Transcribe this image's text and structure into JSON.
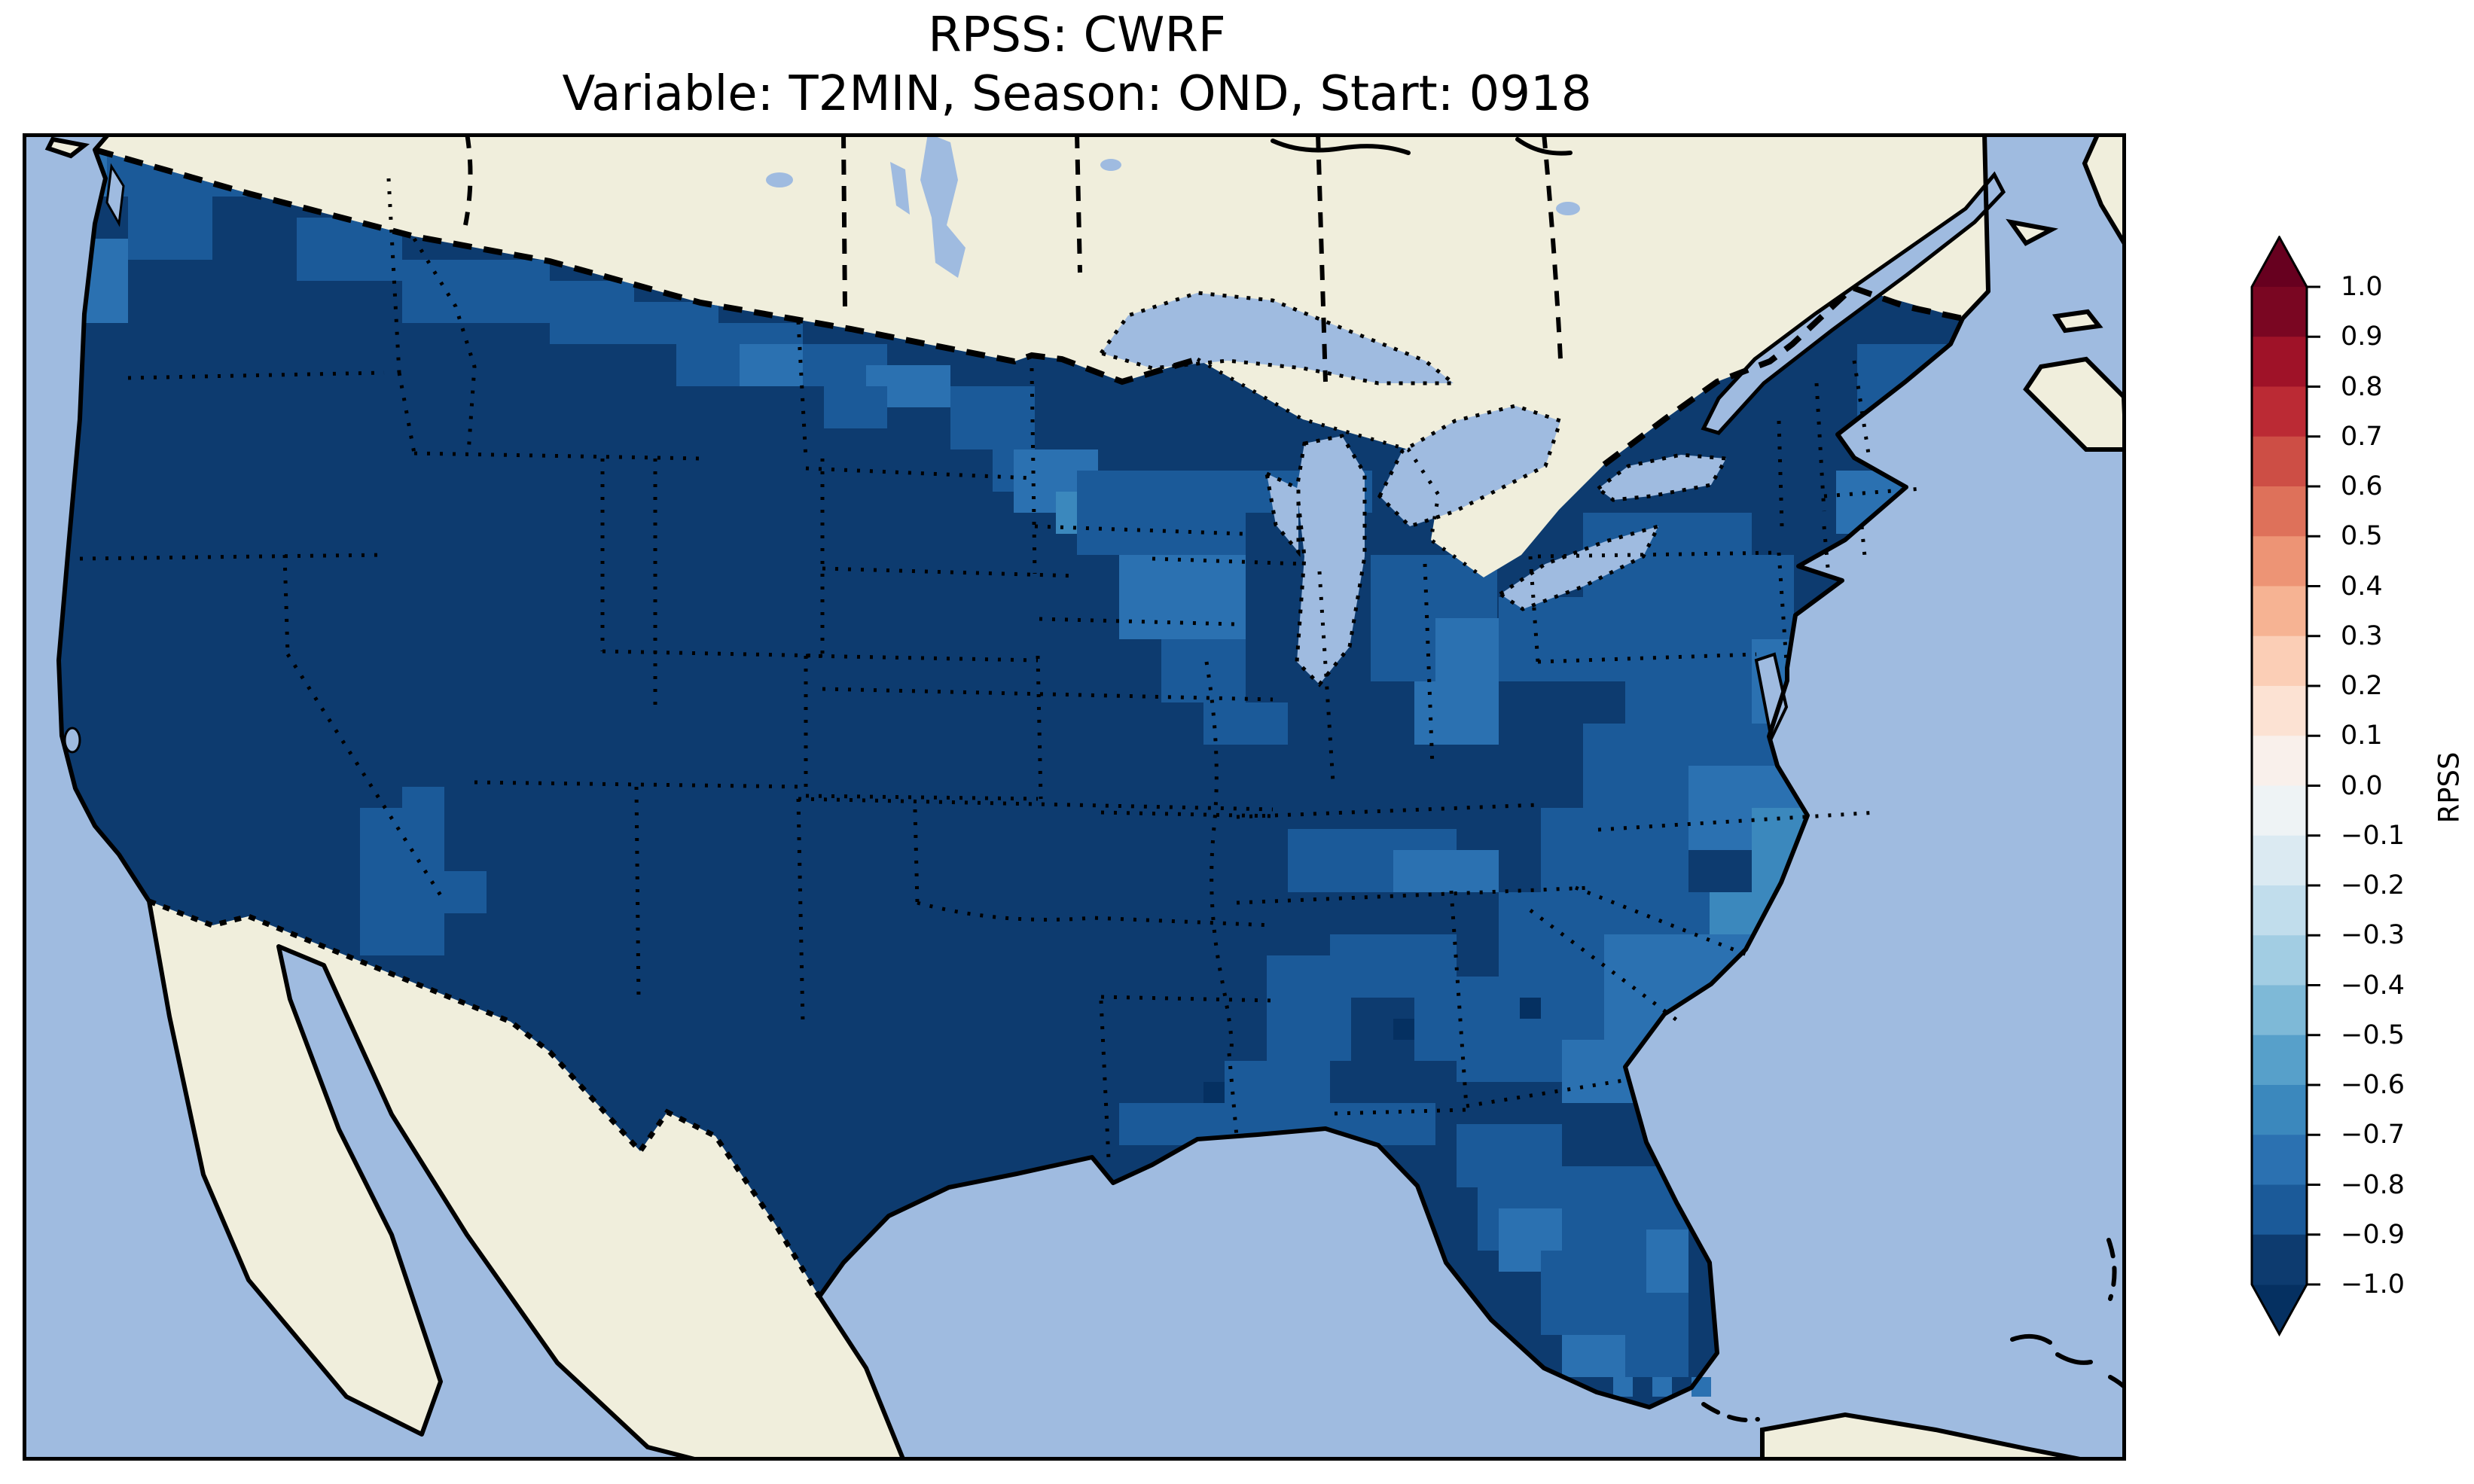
{
  "title": {
    "line1": "RPSS: CWRF",
    "line2": "Variable: T2MIN, Season: OND, Start: 0918"
  },
  "colorbar": {
    "label": "RPSS",
    "extend": "both",
    "ticks": [
      "1.0",
      "0.9",
      "0.8",
      "0.7",
      "0.6",
      "0.5",
      "0.4",
      "0.3",
      "0.2",
      "0.1",
      "0.0",
      "−0.1",
      "−0.2",
      "−0.3",
      "−0.4",
      "−0.5",
      "−0.6",
      "−0.7",
      "−0.8",
      "−0.9",
      "−1.0"
    ],
    "segment_colors": [
      "#7a0622",
      "#9f1228",
      "#bb2a34",
      "#cd4e45",
      "#de715a",
      "#ed9475",
      "#f6b393",
      "#fbceb6",
      "#fce2d3",
      "#f9f0eb",
      "#eef3f5",
      "#dbeaf2",
      "#c1ddec",
      "#a2cde3",
      "#7eb9d7",
      "#57a0ca",
      "#3b88bd",
      "#2b71b1",
      "#1b5a99",
      "#0d3b6f"
    ],
    "over_color": "#67001f",
    "under_color": "#053061"
  },
  "palette": {
    "ocean": "#9fbbe0",
    "land": "#f0eedc",
    "frame": "#000000",
    "b9": "#0d3b6f",
    "b8": "#1b5a99",
    "b7": "#2b71b1",
    "b6": "#3b88bd",
    "b5": "#57a0ca",
    "under": "#053061",
    "over": "#67001f"
  },
  "map_cells": [
    [
      84,
      28,
      56,
      56,
      "b7"
    ],
    [
      112,
      28,
      252,
      56,
      "b8"
    ],
    [
      140,
      84,
      112,
      84,
      "b8"
    ],
    [
      84,
      140,
      56,
      112,
      "b7"
    ],
    [
      364,
      112,
      140,
      84,
      "b8"
    ],
    [
      504,
      168,
      196,
      84,
      "b8"
    ],
    [
      700,
      196,
      112,
      84,
      "b8"
    ],
    [
      812,
      224,
      112,
      56,
      "b8"
    ],
    [
      868,
      252,
      168,
      84,
      "b8"
    ],
    [
      952,
      280,
      84,
      56,
      "b7"
    ],
    [
      1036,
      280,
      112,
      56,
      "b8"
    ],
    [
      1120,
      308,
      112,
      56,
      "b7"
    ],
    [
      1064,
      336,
      84,
      56,
      "b8"
    ],
    [
      1232,
      336,
      112,
      84,
      "b8"
    ],
    [
      1288,
      420,
      28,
      56,
      "b8"
    ],
    [
      1316,
      420,
      112,
      84,
      "b7"
    ],
    [
      1372,
      476,
      56,
      56,
      "b6"
    ],
    [
      1400,
      448,
      224,
      112,
      "b8"
    ],
    [
      1624,
      448,
      168,
      56,
      "b8"
    ],
    [
      1456,
      560,
      168,
      112,
      "b7"
    ],
    [
      1512,
      672,
      112,
      84,
      "b8"
    ],
    [
      1568,
      756,
      112,
      56,
      "b8"
    ],
    [
      1790,
      560,
      168,
      168,
      "b8"
    ],
    [
      1876,
      644,
      84,
      84,
      "b7"
    ],
    [
      1848,
      728,
      112,
      84,
      "b7"
    ],
    [
      2072,
      504,
      224,
      112,
      "b8"
    ],
    [
      1960,
      616,
      224,
      112,
      "b8"
    ],
    [
      2184,
      560,
      168,
      112,
      "b8"
    ],
    [
      2128,
      672,
      280,
      112,
      "b8"
    ],
    [
      2296,
      672,
      112,
      112,
      "b7"
    ],
    [
      2324,
      784,
      84,
      56,
      "b7"
    ],
    [
      2436,
      280,
      140,
      140,
      "b8"
    ],
    [
      2520,
      364,
      56,
      84,
      "b7"
    ],
    [
      2408,
      448,
      140,
      84,
      "b7"
    ],
    [
      2492,
      476,
      84,
      56,
      "b7"
    ],
    [
      2436,
      532,
      112,
      56,
      "b7"
    ],
    [
      2072,
      784,
      280,
      140,
      "b8"
    ],
    [
      2212,
      840,
      168,
      112,
      "b7"
    ],
    [
      2016,
      896,
      196,
      112,
      "b8"
    ],
    [
      2296,
      896,
      168,
      168,
      "b6"
    ],
    [
      2352,
      952,
      112,
      112,
      "b5"
    ],
    [
      2240,
      1008,
      112,
      84,
      "b6"
    ],
    [
      1680,
      924,
      224,
      84,
      "b8"
    ],
    [
      1820,
      952,
      140,
      56,
      "b7"
    ],
    [
      1960,
      1008,
      280,
      140,
      "b8"
    ],
    [
      2100,
      1064,
      196,
      140,
      "b7"
    ],
    [
      2212,
      1148,
      112,
      84,
      "b6"
    ],
    [
      1904,
      1148,
      196,
      112,
      "b8"
    ],
    [
      2044,
      1204,
      168,
      84,
      "b7"
    ],
    [
      1652,
      1092,
      112,
      140,
      "b8"
    ],
    [
      1736,
      1064,
      168,
      84,
      "b8"
    ],
    [
      1848,
      1120,
      112,
      112,
      "b8"
    ],
    [
      1596,
      1232,
      140,
      112,
      "b8"
    ],
    [
      1820,
      1176,
      28,
      28,
      "under"
    ],
    [
      1988,
      1148,
      28,
      28,
      "under"
    ],
    [
      1568,
      1260,
      28,
      28,
      "under"
    ],
    [
      1456,
      1288,
      224,
      56,
      "b8"
    ],
    [
      1708,
      1288,
      168,
      56,
      "b8"
    ],
    [
      1904,
      1316,
      140,
      84,
      "b8"
    ],
    [
      1932,
      1372,
      196,
      112,
      "b8"
    ],
    [
      2128,
      1372,
      84,
      252,
      "b8"
    ],
    [
      1960,
      1428,
      84,
      84,
      "b7"
    ],
    [
      2016,
      1484,
      168,
      112,
      "b8"
    ],
    [
      2100,
      1568,
      112,
      84,
      "b8"
    ],
    [
      2044,
      1596,
      84,
      56,
      "b7"
    ],
    [
      2156,
      1456,
      56,
      84,
      "b7"
    ],
    [
      448,
      896,
      112,
      196,
      "b8"
    ],
    [
      504,
      868,
      56,
      56,
      "b8"
    ],
    [
      560,
      980,
      56,
      56,
      "b8"
    ]
  ],
  "map_cells_offshore": [
    [
      2112,
      1652,
      26,
      26,
      "b7"
    ],
    [
      2164,
      1652,
      26,
      26,
      "b7"
    ],
    [
      2216,
      1652,
      26,
      26,
      "b7"
    ]
  ],
  "chart_data": {
    "type": "heatmap",
    "title": "RPSS: CWRF",
    "subtitle": "Variable: T2MIN, Season: OND, Start: 0918",
    "projection": "Lambert Conformal over CONUS (with southern Canada, northern Mexico, Caribbean edges visible)",
    "colormap": "RdBu_r",
    "vmin": -1.0,
    "vmax": 1.0,
    "bin_width": 0.1,
    "extend": "both",
    "colorbar_label": "RPSS",
    "colorbar_ticks": [
      1.0,
      0.9,
      0.8,
      0.7,
      0.6,
      0.5,
      0.4,
      0.3,
      0.2,
      0.1,
      0.0,
      -0.1,
      -0.2,
      -0.3,
      -0.4,
      -0.5,
      -0.6,
      -0.7,
      -0.8,
      -0.9,
      -1.0
    ],
    "legend_position": "right vertical colorbar with triangular over/under arrows",
    "grid": false,
    "regions": [
      {
        "region": "CONUS interior (West, Great Plains, Texas, Midwest, lower Mississippi valley)",
        "approx_rpss": -0.95
      },
      {
        "region": "Pacific Northwest and northern Rockies border strip",
        "approx_rpss": -0.8
      },
      {
        "region": "North Dakota / Minnesota northern tier",
        "approx_rpss": -0.75
      },
      {
        "region": "Wisconsin and Michigan",
        "approx_rpss": -0.75
      },
      {
        "region": "Upstate New York / Pennsylvania / Ohio valley",
        "approx_rpss": -0.85
      },
      {
        "region": "Coastal Maine and southern New England coast",
        "approx_rpss": -0.8
      },
      {
        "region": "Mid-Atlantic (WV, VA, MD)",
        "approx_rpss": -0.8
      },
      {
        "region": "Eastern North Carolina / SE Virginia (lightest area)",
        "approx_rpss": -0.55
      },
      {
        "region": "Carolinas, Georgia, Tennessee valley",
        "approx_rpss": -0.75
      },
      {
        "region": "Florida peninsula",
        "approx_rpss": -0.8
      },
      {
        "region": "Gulf Coast (LA, MS, AL)",
        "approx_rpss": -0.8
      },
      {
        "region": "Southern Arizona patch",
        "approx_rpss": -0.85
      },
      {
        "region": "Scattered Deep-South cells below -1.0 (under color)",
        "approx_rpss": -1.05
      },
      {
        "region": "Florida Keys offshore cells",
        "approx_rpss": -0.75
      }
    ],
    "notes": "Every grid cell on the map is negative (blue side of the colorbar); no red/positive cells appear. Darkest -1.0..-0.9 bin dominates the interior."
  }
}
